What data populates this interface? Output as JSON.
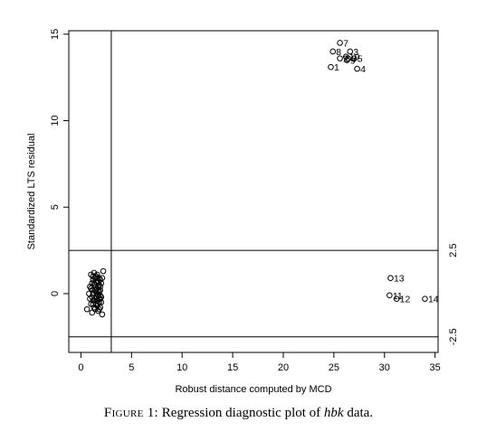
{
  "chart_data": {
    "type": "scatter",
    "xlabel": "Robust distance computed by MCD",
    "ylabel": "Standardized LTS residual",
    "xlim": [
      -1.2,
      35.3
    ],
    "ylim": [
      -3.4,
      15.2
    ],
    "xticks": [
      0,
      5,
      10,
      15,
      20,
      25,
      30,
      35
    ],
    "yticks": [
      0,
      5,
      10,
      15
    ],
    "right_ticks": [
      -2.5,
      2.5
    ],
    "right_tick_labels": [
      "-2.5",
      "2.5"
    ],
    "cutoff_vertical": 3.0,
    "cutoff_horizontal": [
      2.5,
      -2.5
    ],
    "grid": false,
    "legend": "none",
    "point_color": "#000000",
    "labeled_points": [
      {
        "label": "7",
        "x": 25.6,
        "y": 14.5
      },
      {
        "label": "3",
        "x": 26.6,
        "y": 14.0
      },
      {
        "label": "8",
        "x": 24.9,
        "y": 14.0
      },
      {
        "label": "2",
        "x": 25.6,
        "y": 13.6
      },
      {
        "label": "6",
        "x": 26.4,
        "y": 13.6
      },
      {
        "label": "10",
        "x": 26.2,
        "y": 13.7
      },
      {
        "label": "9",
        "x": 26.3,
        "y": 13.5
      },
      {
        "label": "5",
        "x": 27.0,
        "y": 13.6
      },
      {
        "label": "1",
        "x": 24.7,
        "y": 13.1
      },
      {
        "label": "4",
        "x": 27.3,
        "y": 13.0
      },
      {
        "label": "13",
        "x": 30.6,
        "y": 0.9
      },
      {
        "label": "11",
        "x": 30.5,
        "y": -0.1
      },
      {
        "label": "12",
        "x": 31.2,
        "y": -0.3
      },
      {
        "label": "14",
        "x": 34.0,
        "y": -0.3
      }
    ],
    "points": [
      {
        "x": 0.6,
        "y": -0.9
      },
      {
        "x": 0.8,
        "y": 0.0
      },
      {
        "x": 0.9,
        "y": 0.4
      },
      {
        "x": 0.9,
        "y": -0.3
      },
      {
        "x": 1.0,
        "y": 1.1
      },
      {
        "x": 1.0,
        "y": -0.6
      },
      {
        "x": 1.1,
        "y": 0.2
      },
      {
        "x": 1.1,
        "y": -1.1
      },
      {
        "x": 1.2,
        "y": 0.8
      },
      {
        "x": 1.2,
        "y": 0.0
      },
      {
        "x": 1.3,
        "y": 1.2
      },
      {
        "x": 1.3,
        "y": -0.4
      },
      {
        "x": 1.4,
        "y": 0.5
      },
      {
        "x": 1.4,
        "y": -0.9
      },
      {
        "x": 1.5,
        "y": 1.0
      },
      {
        "x": 1.5,
        "y": -0.2
      },
      {
        "x": 1.6,
        "y": 0.3
      },
      {
        "x": 1.6,
        "y": -0.7
      },
      {
        "x": 1.6,
        "y": 1.1
      },
      {
        "x": 1.7,
        "y": -0.1
      },
      {
        "x": 1.7,
        "y": 0.7
      },
      {
        "x": 1.7,
        "y": -1.0
      },
      {
        "x": 1.8,
        "y": 0.1
      },
      {
        "x": 1.8,
        "y": -0.5
      },
      {
        "x": 1.8,
        "y": 0.9
      },
      {
        "x": 1.9,
        "y": -0.3
      },
      {
        "x": 1.9,
        "y": 0.4
      },
      {
        "x": 1.9,
        "y": -0.8
      },
      {
        "x": 2.0,
        "y": 0.6
      },
      {
        "x": 2.0,
        "y": -0.2
      },
      {
        "x": 2.1,
        "y": -1.2
      },
      {
        "x": 2.1,
        "y": 0.9
      },
      {
        "x": 2.2,
        "y": 1.3
      },
      {
        "x": 1.2,
        "y": -0.6
      },
      {
        "x": 1.5,
        "y": 0.1
      },
      {
        "x": 1.8,
        "y": -0.3
      },
      {
        "x": 1.3,
        "y": 0.6
      },
      {
        "x": 1.6,
        "y": -0.4
      },
      {
        "x": 1.4,
        "y": 0.9
      },
      {
        "x": 1.9,
        "y": 0.2
      },
      {
        "x": 1.7,
        "y": -0.6
      },
      {
        "x": 1.0,
        "y": 0.3
      },
      {
        "x": 1.1,
        "y": -0.2
      },
      {
        "x": 2.0,
        "y": -0.5
      },
      {
        "x": 1.5,
        "y": 0.7
      },
      {
        "x": 1.6,
        "y": 0.0
      },
      {
        "x": 1.4,
        "y": -0.3
      },
      {
        "x": 1.8,
        "y": 0.5
      },
      {
        "x": 1.2,
        "y": 1.0
      },
      {
        "x": 1.7,
        "y": 0.2
      },
      {
        "x": 1.3,
        "y": -0.8
      },
      {
        "x": 1.9,
        "y": -0.1
      },
      {
        "x": 1.5,
        "y": -0.6
      },
      {
        "x": 1.1,
        "y": 0.6
      },
      {
        "x": 1.6,
        "y": 0.9
      },
      {
        "x": 1.8,
        "y": -0.9
      },
      {
        "x": 1.4,
        "y": 0.2
      },
      {
        "x": 1.7,
        "y": 0.4
      },
      {
        "x": 1.2,
        "y": -0.4
      },
      {
        "x": 1.9,
        "y": 0.8
      }
    ]
  },
  "caption": {
    "label": "Figure 1:",
    "text_before": " Regression diagnostic plot of ",
    "emphasis": "hbk",
    "text_after": " data."
  }
}
